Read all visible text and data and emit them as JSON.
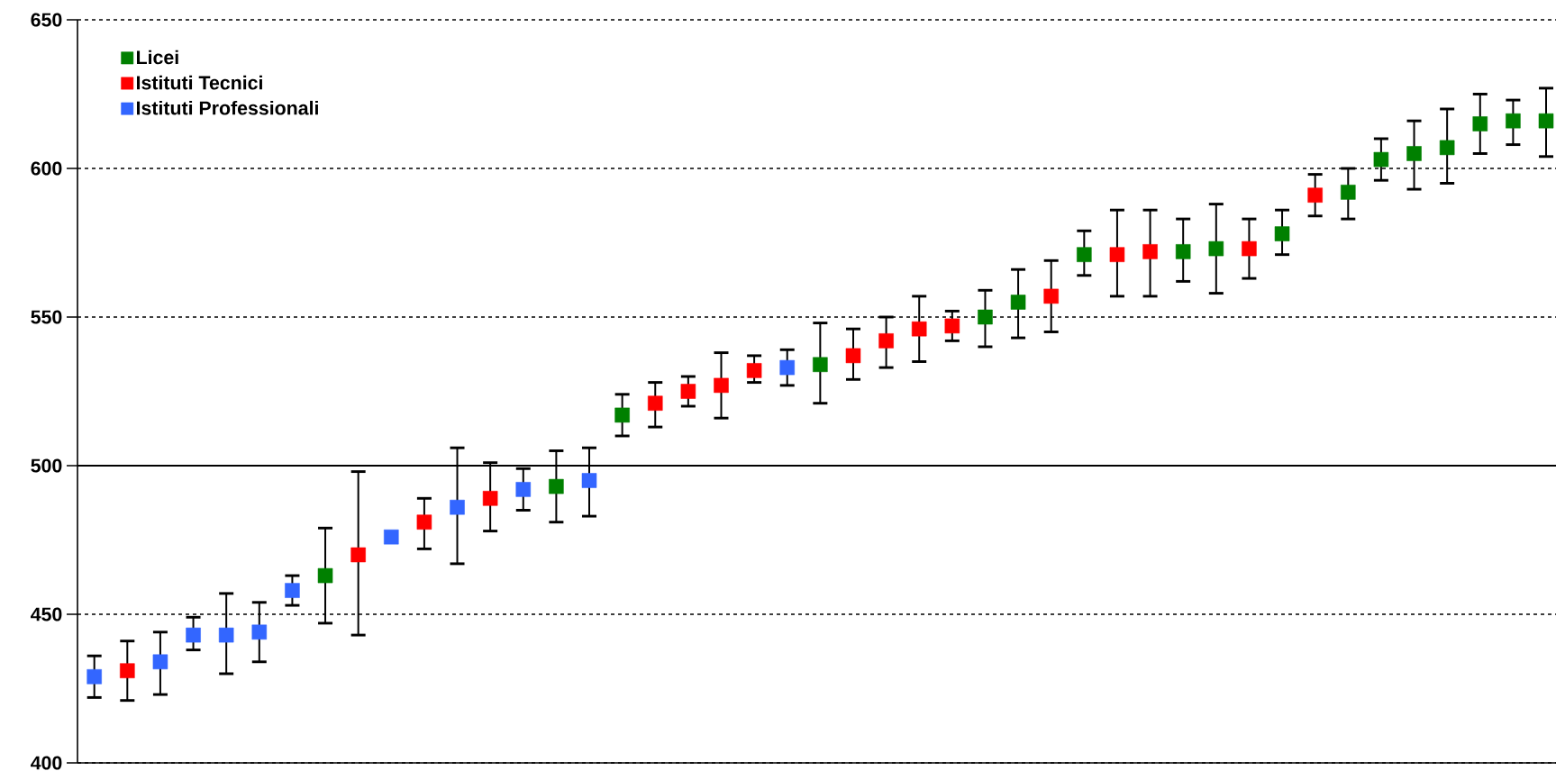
{
  "chart_data": {
    "type": "scatter",
    "categories": [
      null,
      null,
      null,
      null,
      null,
      null,
      null,
      null,
      null,
      null,
      null,
      null,
      null,
      null,
      null,
      null,
      null,
      null,
      null,
      null,
      null,
      null,
      null,
      null,
      null,
      null,
      null,
      null,
      null,
      null,
      null,
      null,
      null,
      null,
      null,
      null,
      null,
      null,
      null,
      null,
      null,
      null,
      null,
      null,
      null
    ],
    "series": [
      {
        "name": "Licei",
        "color": "#008000",
        "values": [
          null,
          null,
          null,
          null,
          null,
          null,
          null,
          463,
          null,
          null,
          null,
          null,
          null,
          null,
          493,
          null,
          517,
          null,
          null,
          null,
          null,
          null,
          534,
          null,
          null,
          null,
          null,
          550,
          555,
          null,
          571,
          null,
          null,
          572,
          573,
          null,
          578,
          null,
          592,
          603,
          605,
          607,
          615,
          616,
          616
        ],
        "errors": [
          null,
          null,
          null,
          null,
          null,
          null,
          null,
          [
            447,
            479
          ],
          null,
          null,
          null,
          null,
          null,
          null,
          [
            481,
            505
          ],
          null,
          [
            510,
            524
          ],
          null,
          null,
          null,
          null,
          null,
          [
            521,
            548
          ],
          null,
          null,
          null,
          null,
          [
            540,
            559
          ],
          [
            543,
            566
          ],
          null,
          [
            564,
            579
          ],
          null,
          null,
          [
            562,
            583
          ],
          [
            558,
            588
          ],
          null,
          [
            571,
            586
          ],
          null,
          [
            583,
            600
          ],
          [
            596,
            610
          ],
          [
            593,
            616
          ],
          [
            595,
            620
          ],
          [
            605,
            625
          ],
          [
            608,
            623
          ],
          [
            604,
            627
          ]
        ]
      },
      {
        "name": "Istituti Tecnici",
        "color": "#ff0000",
        "values": [
          null,
          431,
          null,
          null,
          null,
          null,
          null,
          null,
          470,
          null,
          481,
          null,
          489,
          null,
          null,
          null,
          null,
          521,
          525,
          527,
          532,
          null,
          null,
          537,
          542,
          546,
          547,
          null,
          null,
          557,
          null,
          571,
          572,
          null,
          null,
          573,
          null,
          591,
          null,
          null,
          null,
          null,
          null,
          null,
          null
        ],
        "errors": [
          null,
          [
            421,
            441
          ],
          null,
          null,
          null,
          null,
          null,
          null,
          [
            443,
            498
          ],
          null,
          [
            472,
            489
          ],
          null,
          [
            478,
            501
          ],
          null,
          null,
          null,
          null,
          [
            513,
            528
          ],
          [
            520,
            530
          ],
          [
            516,
            538
          ],
          [
            528,
            537
          ],
          null,
          null,
          [
            529,
            546
          ],
          [
            533,
            550
          ],
          [
            535,
            557
          ],
          [
            542,
            552
          ],
          null,
          null,
          [
            545,
            569
          ],
          null,
          [
            557,
            586
          ],
          [
            557,
            586
          ],
          null,
          null,
          [
            563,
            583
          ],
          null,
          [
            584,
            598
          ],
          null,
          null,
          null,
          null,
          null,
          null,
          null
        ]
      },
      {
        "name": "Istituti Professionali",
        "color": "#3366ff",
        "values": [
          429,
          null,
          434,
          443,
          443,
          444,
          458,
          null,
          null,
          476,
          null,
          486,
          null,
          492,
          null,
          495,
          null,
          null,
          null,
          null,
          null,
          533,
          null,
          null,
          null,
          null,
          null,
          null,
          null,
          null,
          null,
          null,
          null,
          null,
          null,
          null,
          null,
          null,
          null,
          null,
          null,
          null,
          null,
          null,
          null
        ],
        "errors": [
          [
            422,
            436
          ],
          null,
          [
            423,
            444
          ],
          [
            438,
            449
          ],
          [
            430,
            457
          ],
          [
            434,
            454
          ],
          [
            453,
            463
          ],
          null,
          null,
          null,
          null,
          [
            467,
            506
          ],
          null,
          [
            485,
            499
          ],
          null,
          [
            483,
            506
          ],
          null,
          null,
          null,
          null,
          null,
          [
            527,
            539
          ],
          null,
          null,
          null,
          null,
          null,
          null,
          null,
          null,
          null,
          null,
          null,
          null,
          null,
          null,
          null,
          null,
          null,
          null,
          null,
          null,
          null,
          null,
          null
        ]
      }
    ],
    "ylim": [
      400,
      650
    ],
    "yticks": [
      400,
      450,
      500,
      550,
      600,
      650
    ],
    "ref_lines": [
      {
        "axis": "y",
        "value": 500,
        "color": "#000000"
      }
    ],
    "grid": "y",
    "legend": "top left",
    "marker": "square"
  }
}
